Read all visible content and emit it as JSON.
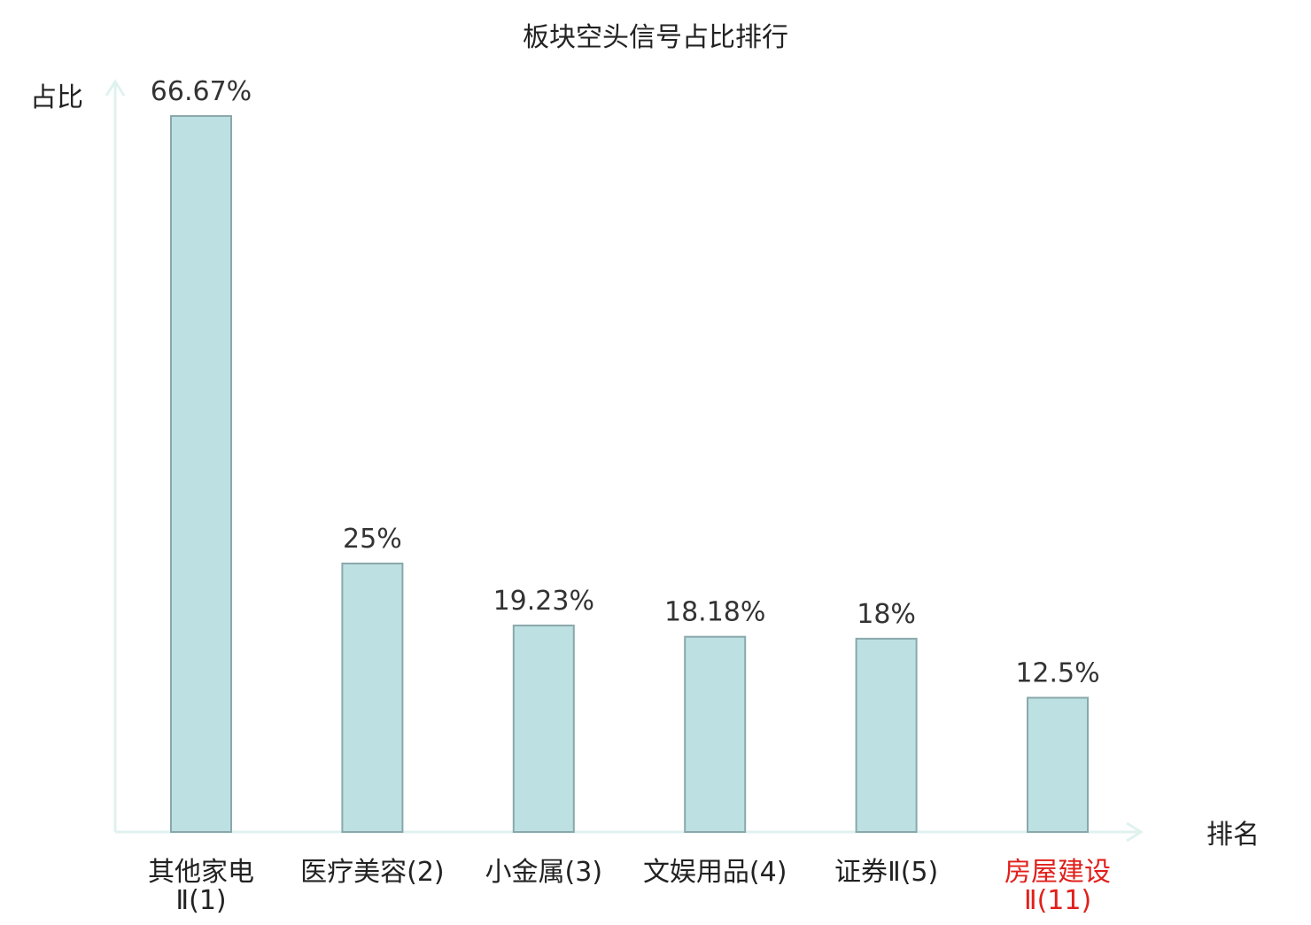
{
  "colors": {
    "bar_fill": "#bde0e3",
    "bar_stroke": "#8aa8ab",
    "axis": "#e0f2ef",
    "text": "#222222",
    "value_text": "#333333",
    "highlight": "#e0201b"
  },
  "chart_data": {
    "type": "bar",
    "title": "板块空头信号占比排行",
    "xlabel": "排名",
    "ylabel": "占比",
    "unit": "%",
    "grid": false,
    "ylim": [
      0,
      66.67
    ],
    "categories": [
      {
        "label_line1": "其他家电",
        "label_line2": "Ⅱ(1)",
        "highlight": false
      },
      {
        "label_line1": "医疗美容(2)",
        "label_line2": "",
        "highlight": false
      },
      {
        "label_line1": "小金属(3)",
        "label_line2": "",
        "highlight": false
      },
      {
        "label_line1": "文娱用品(4)",
        "label_line2": "",
        "highlight": false
      },
      {
        "label_line1": "证券Ⅱ(5)",
        "label_line2": "",
        "highlight": false
      },
      {
        "label_line1": "房屋建设",
        "label_line2": "Ⅱ(11)",
        "highlight": true
      }
    ],
    "values": [
      66.67,
      25,
      19.23,
      18.18,
      18,
      12.5
    ],
    "value_labels": [
      "66.67%",
      "25%",
      "19.23%",
      "18.18%",
      "18%",
      "12.5%"
    ]
  }
}
